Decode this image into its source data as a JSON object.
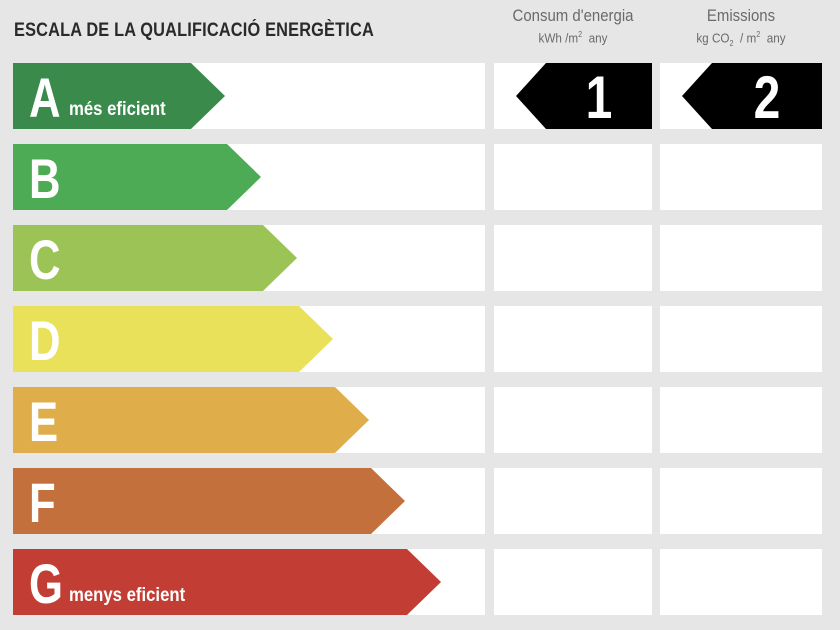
{
  "title": "ESCALA DE LA QUALIFICACIÓ ENERGÈTICA",
  "columns": {
    "energy": {
      "title": "Consum d'energia",
      "unit_a": "kWh /m",
      "unit_sup": "2",
      "unit_b": "any"
    },
    "emissions": {
      "title": "Emissions",
      "unit_a": "kg CO",
      "unit_sub": "2",
      "unit_c": "/ m",
      "unit_sup": "2",
      "unit_b": "any"
    }
  },
  "classes": [
    {
      "letter": "A",
      "label": "més eficient",
      "color": "#3a8a4c"
    },
    {
      "letter": "B",
      "label": "",
      "color": "#4eab55"
    },
    {
      "letter": "C",
      "label": "",
      "color": "#9bc355"
    },
    {
      "letter": "D",
      "label": "",
      "color": "#e9e15a"
    },
    {
      "letter": "E",
      "label": "",
      "color": "#dfae4b"
    },
    {
      "letter": "F",
      "label": "",
      "color": "#c4703c"
    },
    {
      "letter": "G",
      "label": "menys eficient",
      "color": "#c23e34"
    }
  ],
  "ratings": {
    "energy": {
      "class_index": 0,
      "value": "1"
    },
    "emissions": {
      "class_index": 0,
      "value": "2"
    }
  },
  "badge_color": "#000000"
}
